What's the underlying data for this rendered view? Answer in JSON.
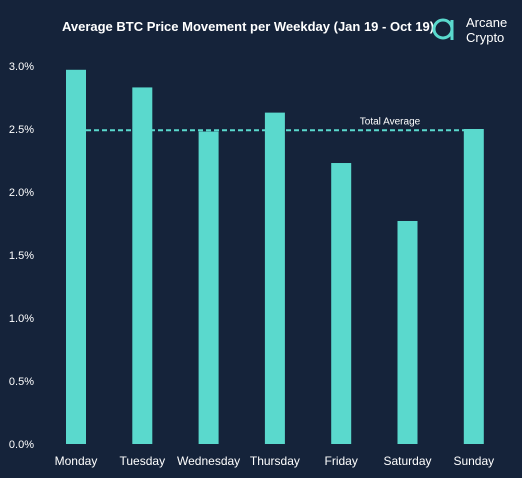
{
  "colors": {
    "background": "#15233a",
    "bar": "#5ad9cd",
    "text": "#ffffff",
    "average_line": "#5ad9cd"
  },
  "logo": {
    "line1": "Arcane",
    "line2": "Crypto",
    "icon": "arcane-crypto-logo-icon"
  },
  "chart_data": {
    "type": "bar",
    "title": "Average BTC Price Movement per Weekday (Jan 19 - Oct 19)",
    "xlabel": "",
    "ylabel": "",
    "categories": [
      "Monday",
      "Tuesday",
      "Wednesday",
      "Thursday",
      "Friday",
      "Saturday",
      "Sunday"
    ],
    "values": [
      2.97,
      2.83,
      2.48,
      2.63,
      2.23,
      1.77,
      2.5
    ],
    "value_format": "percent",
    "ylim": [
      0,
      3.0
    ],
    "yticks": [
      0,
      0.5,
      1.0,
      1.5,
      2.0,
      2.5,
      3.0
    ],
    "ytick_labels": [
      "0.0%",
      "0.5%",
      "1.0%",
      "1.5%",
      "2.0%",
      "2.5%",
      "3.0%"
    ],
    "grid": false,
    "legend": "none",
    "reference_line": {
      "label": "Total Average",
      "value": 2.49,
      "style": "dashed"
    }
  }
}
